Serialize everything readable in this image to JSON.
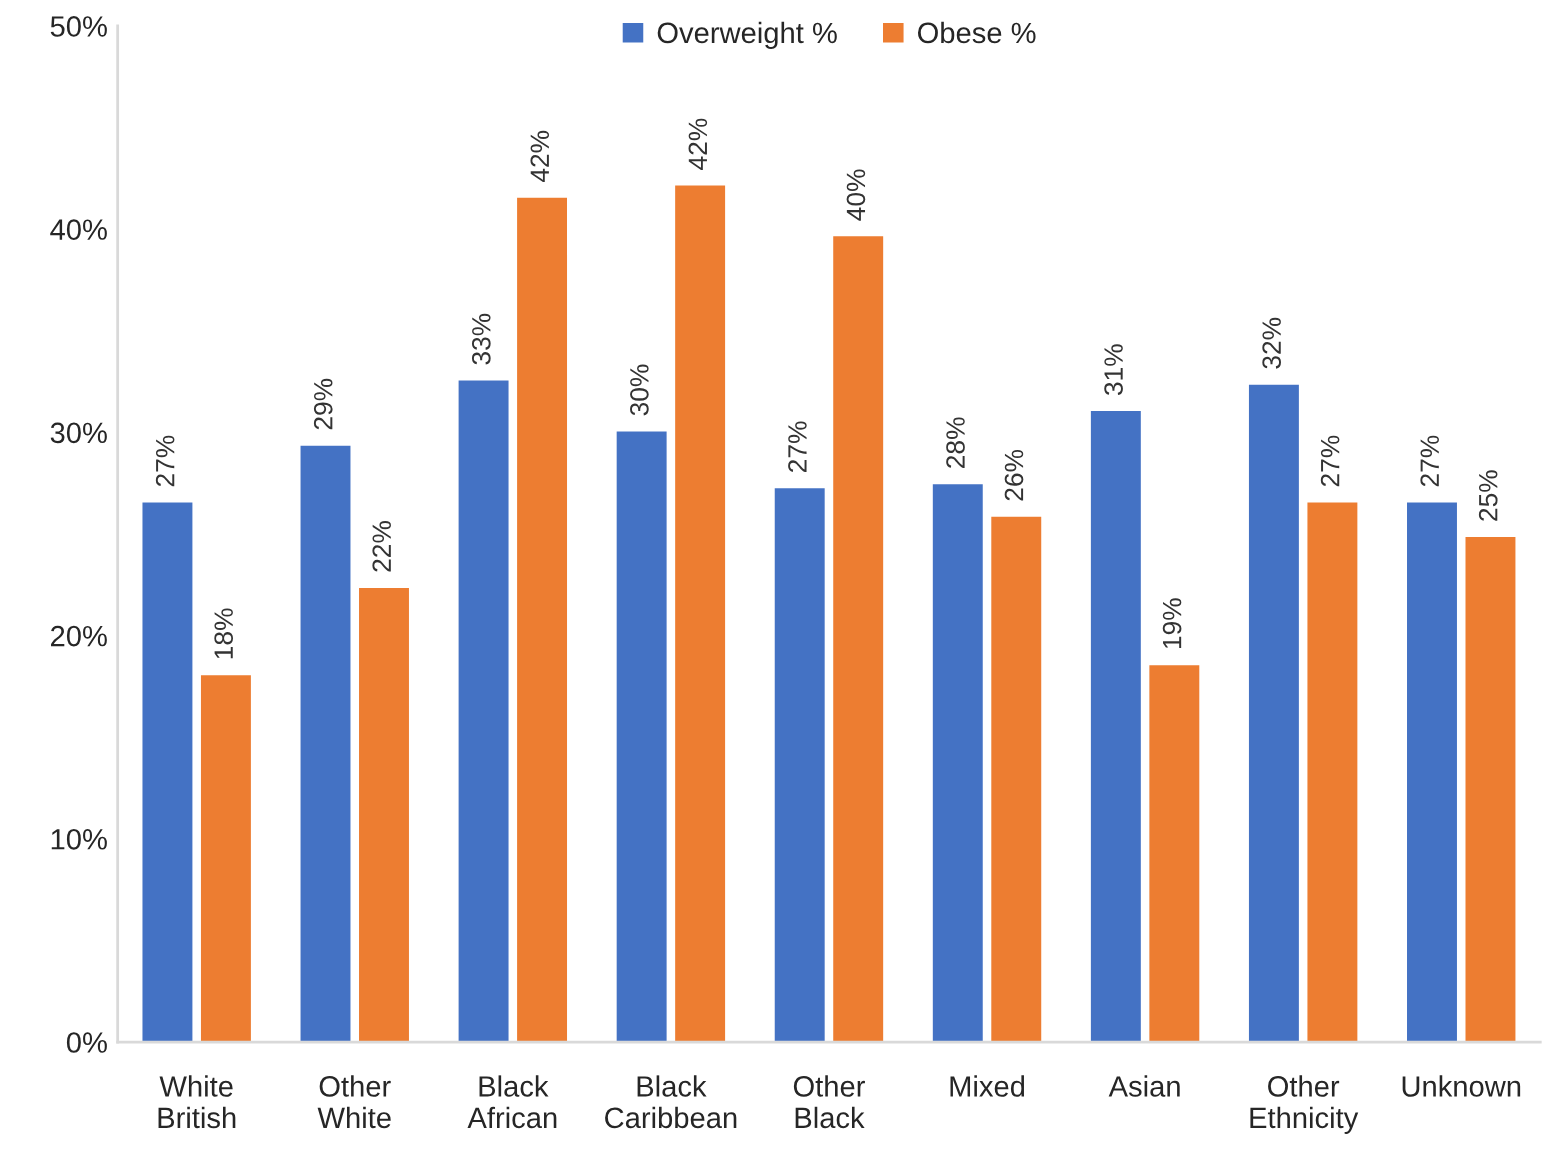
{
  "chart_data": {
    "type": "bar",
    "categories": [
      "White\nBritish",
      "Other\nWhite",
      "Black\nAfrican",
      "Black\nCaribbean",
      "Other\nBlack",
      "Mixed",
      "Asian",
      "Other\nEthnicity",
      "Unknown"
    ],
    "series": [
      {
        "name": "Overweight %",
        "color": "#4472c4",
        "values": [
          26.6,
          29.4,
          32.6,
          30.1,
          27.3,
          27.5,
          31.1,
          32.4,
          26.6
        ],
        "value_labels": [
          "27%",
          "29%",
          "33%",
          "30%",
          "27%",
          "28%",
          "31%",
          "32%",
          "27%"
        ]
      },
      {
        "name": "Obese %",
        "color": "#ed7d31",
        "values": [
          18.1,
          22.4,
          41.6,
          42.2,
          39.7,
          25.9,
          18.6,
          26.6,
          24.9
        ],
        "value_labels": [
          "18%",
          "22%",
          "42%",
          "42%",
          "40%",
          "26%",
          "19%",
          "27%",
          "25%"
        ]
      }
    ],
    "ylim": [
      0,
      50
    ],
    "yticks": [
      {
        "value": 0,
        "label": "0%"
      },
      {
        "value": 10,
        "label": "10%"
      },
      {
        "value": 20,
        "label": "20%"
      },
      {
        "value": 30,
        "label": "30%"
      },
      {
        "value": 40,
        "label": "40%"
      },
      {
        "value": 50,
        "label": "50%"
      }
    ],
    "grid": false,
    "legend": "top"
  }
}
